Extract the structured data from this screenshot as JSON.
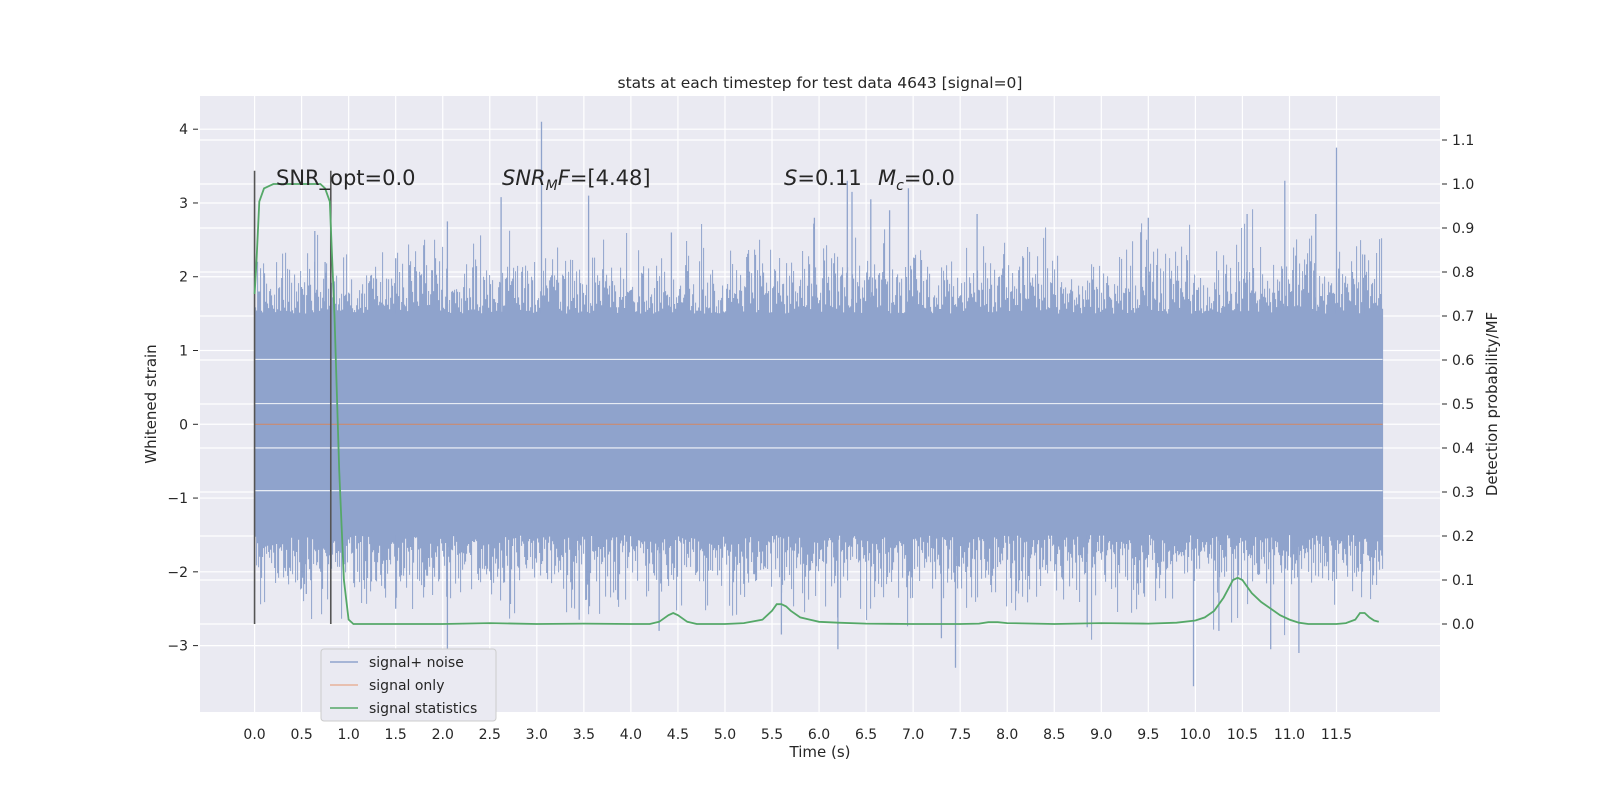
{
  "chart_data": {
    "type": "line",
    "title": "stats at each timestep for test data 4643 [signal=0]",
    "xlabel": "Time (s)",
    "ylabel": "Whitened strain",
    "ylabel_right": "Detection probability/MF",
    "xlim": [
      -0.58,
      12.6
    ],
    "ylim": [
      -3.9,
      4.45
    ],
    "ylim_right": [
      -0.2,
      1.2
    ],
    "x_ticks": [
      "0.0",
      "0.5",
      "1.0",
      "1.5",
      "2.0",
      "2.5",
      "3.0",
      "3.5",
      "4.0",
      "4.5",
      "5.0",
      "5.5",
      "6.0",
      "6.5",
      "7.0",
      "7.5",
      "8.0",
      "8.5",
      "9.0",
      "9.5",
      "10.0",
      "10.5",
      "11.0",
      "11.5"
    ],
    "y_ticks": [
      "−3",
      "−2",
      "−1",
      "0",
      "1",
      "2",
      "3",
      "4"
    ],
    "y_ticks_right": [
      "0.0",
      "0.1",
      "0.2",
      "0.3",
      "0.4",
      "0.5",
      "0.6",
      "0.7",
      "0.8",
      "0.9",
      "1.0",
      "1.1"
    ],
    "grid": true,
    "legend_position": "lower-left",
    "annotations": {
      "snr_opt": "SNR_opt=0.0",
      "snr_mf_prefix": "SNR",
      "snr_mf_sub": "M",
      "snr_mf_suffix": "F=[4.48]",
      "s_label": "S",
      "s_value": "=0.11",
      "mc_label": "M",
      "mc_sub": "c",
      "mc_value": "=0.0"
    },
    "series": [
      {
        "name": "signal+ noise",
        "color": "#8fa3cc",
        "kind": "noise",
        "x_range": [
          0.0,
          11.99
        ],
        "typical_amplitude": 1.5,
        "max_value": 4.1,
        "min_value": -3.55,
        "notable_peaks": [
          [
            0.64,
            2.62
          ],
          [
            0.75,
            2.2
          ],
          [
            1.5,
            2.25
          ],
          [
            2.05,
            2.75
          ],
          [
            2.62,
            3.08
          ],
          [
            3.05,
            4.1
          ],
          [
            3.55,
            3.1
          ],
          [
            4.43,
            2.6
          ],
          [
            5.95,
            2.8
          ],
          [
            6.3,
            3.3
          ],
          [
            6.35,
            3.15
          ],
          [
            6.55,
            3.05
          ],
          [
            6.75,
            2.9
          ],
          [
            6.95,
            3.2
          ],
          [
            7.68,
            2.85
          ],
          [
            9.5,
            2.8
          ],
          [
            10.55,
            2.85
          ],
          [
            10.95,
            3.3
          ],
          [
            11.28,
            2.85
          ],
          [
            11.5,
            3.75
          ],
          [
            11.8,
            2.3
          ]
        ],
        "notable_troughs": [
          [
            0.55,
            -2.3
          ],
          [
            1.5,
            -2.5
          ],
          [
            2.05,
            -3.1
          ],
          [
            3.45,
            -2.65
          ],
          [
            4.3,
            -2.8
          ],
          [
            5.6,
            -2.85
          ],
          [
            6.2,
            -3.05
          ],
          [
            7.3,
            -2.9
          ],
          [
            7.45,
            -3.3
          ],
          [
            8.85,
            -2.75
          ],
          [
            9.98,
            -3.55
          ],
          [
            10.25,
            -2.8
          ],
          [
            10.8,
            -3.05
          ],
          [
            11.1,
            -3.1
          ]
        ]
      },
      {
        "name": "signal only",
        "color": "#dd8452",
        "x": [
          0.0,
          11.99
        ],
        "y": [
          0.0,
          0.0
        ]
      },
      {
        "name": "signal statistics",
        "color": "#55a868",
        "axis": "right",
        "x": [
          0.0,
          0.02,
          0.05,
          0.1,
          0.15,
          0.2,
          0.3,
          0.4,
          0.5,
          0.6,
          0.65,
          0.7,
          0.75,
          0.8,
          0.85,
          0.9,
          0.95,
          1.0,
          1.05,
          1.1,
          1.2,
          1.5,
          2.0,
          2.5,
          3.0,
          3.5,
          4.0,
          4.2,
          4.3,
          4.4,
          4.45,
          4.5,
          4.6,
          4.7,
          4.8,
          5.0,
          5.2,
          5.4,
          5.5,
          5.55,
          5.6,
          5.65,
          5.7,
          5.8,
          5.9,
          6.0,
          6.2,
          6.5,
          7.0,
          7.5,
          7.7,
          7.8,
          7.9,
          8.0,
          8.5,
          9.0,
          9.5,
          9.8,
          10.0,
          10.1,
          10.2,
          10.3,
          10.35,
          10.4,
          10.45,
          10.5,
          10.55,
          10.6,
          10.7,
          10.8,
          10.9,
          11.0,
          11.1,
          11.2,
          11.4,
          11.5,
          11.6,
          11.7,
          11.75,
          11.8,
          11.85,
          11.9,
          11.95
        ],
        "y": [
          0.75,
          0.82,
          0.96,
          0.99,
          0.995,
          1.0,
          1.0,
          1.0,
          1.0,
          1.0,
          1.0,
          1.0,
          0.99,
          0.96,
          0.7,
          0.35,
          0.1,
          0.01,
          0.0,
          0.0,
          0.0,
          0.0,
          0.0,
          0.002,
          0.0,
          0.001,
          0.0,
          0.0,
          0.005,
          0.02,
          0.025,
          0.02,
          0.005,
          0.0,
          0.0,
          0.0,
          0.002,
          0.01,
          0.03,
          0.045,
          0.045,
          0.04,
          0.03,
          0.015,
          0.01,
          0.005,
          0.003,
          0.001,
          0.0,
          0.0,
          0.001,
          0.004,
          0.004,
          0.002,
          0.0,
          0.002,
          0.001,
          0.003,
          0.008,
          0.015,
          0.03,
          0.06,
          0.08,
          0.1,
          0.105,
          0.1,
          0.085,
          0.07,
          0.05,
          0.035,
          0.02,
          0.01,
          0.003,
          0.0,
          0.0,
          0.0,
          0.002,
          0.01,
          0.025,
          0.025,
          0.015,
          0.008,
          0.005
        ]
      }
    ],
    "vertical_lines": [
      {
        "x": 0.0,
        "color": "#555555"
      },
      {
        "x": 0.81,
        "color": "#555555"
      }
    ]
  }
}
